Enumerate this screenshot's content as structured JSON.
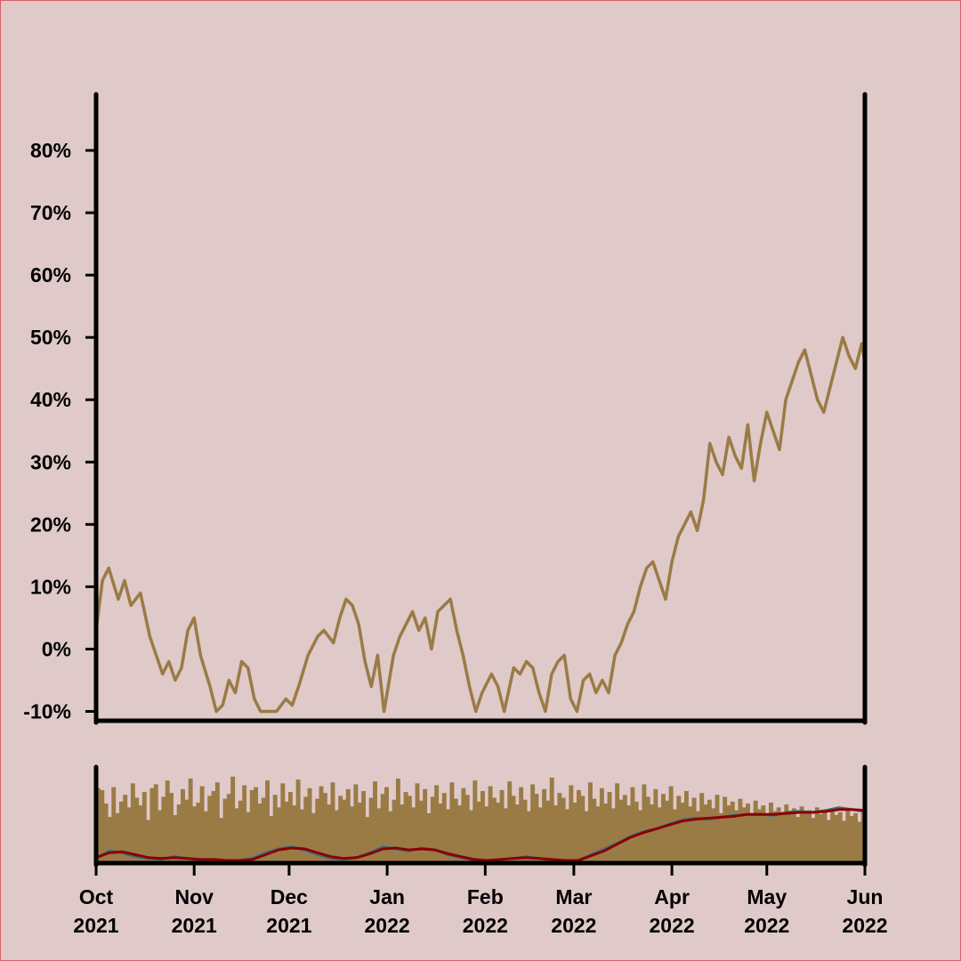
{
  "chart_data": [
    {
      "type": "line",
      "title": "",
      "xlabel": "",
      "ylabel": "",
      "ylim": [
        -11.5,
        89
      ],
      "yticks": [
        -10,
        0,
        10,
        20,
        30,
        40,
        50,
        60,
        70,
        80
      ],
      "ytick_labels": [
        "-10%",
        "0%",
        "10%",
        "20%",
        "30%",
        "40%",
        "50%",
        "60%",
        "70%",
        "80%"
      ],
      "grid": false,
      "legend": "none",
      "colors": {
        "line": "#9a7b45",
        "axis": "#000000",
        "background": "#dfc9c9"
      },
      "series": [
        {
          "x": [
            "2021-10-01",
            "2021-10-03",
            "2021-10-05",
            "2021-10-08",
            "2021-10-10",
            "2021-10-12",
            "2021-10-15",
            "2021-10-18",
            "2021-10-20",
            "2021-10-22",
            "2021-10-24",
            "2021-10-26",
            "2021-10-28",
            "2021-10-30",
            "2021-11-01",
            "2021-11-03",
            "2021-11-06",
            "2021-11-08",
            "2021-11-10",
            "2021-11-12",
            "2021-11-14",
            "2021-11-16",
            "2021-11-18",
            "2021-11-20",
            "2021-11-22",
            "2021-11-24",
            "2021-11-27",
            "2021-11-30",
            "2021-12-02",
            "2021-12-04",
            "2021-12-07",
            "2021-12-10",
            "2021-12-12",
            "2021-12-15",
            "2021-12-17",
            "2021-12-19",
            "2021-12-21",
            "2021-12-23",
            "2021-12-25",
            "2021-12-27",
            "2021-12-29",
            "2021-12-31",
            "2022-01-03",
            "2022-01-05",
            "2022-01-07",
            "2022-01-09",
            "2022-01-11",
            "2022-01-13",
            "2022-01-15",
            "2022-01-17",
            "2022-01-19",
            "2022-01-21",
            "2022-01-23",
            "2022-01-25",
            "2022-01-27",
            "2022-01-29",
            "2022-01-31",
            "2022-02-03",
            "2022-02-05",
            "2022-02-07",
            "2022-02-10",
            "2022-02-12",
            "2022-02-14",
            "2022-02-16",
            "2022-02-18",
            "2022-02-20",
            "2022-02-22",
            "2022-02-24",
            "2022-02-26",
            "2022-02-28",
            "2022-03-02",
            "2022-03-04",
            "2022-03-06",
            "2022-03-08",
            "2022-03-10",
            "2022-03-12",
            "2022-03-14",
            "2022-03-16",
            "2022-03-18",
            "2022-03-20",
            "2022-03-22",
            "2022-03-24",
            "2022-03-26",
            "2022-03-28",
            "2022-03-30",
            "2022-04-01",
            "2022-04-03",
            "2022-04-05",
            "2022-04-07",
            "2022-04-09",
            "2022-04-11",
            "2022-04-13",
            "2022-04-15",
            "2022-04-17",
            "2022-04-19",
            "2022-04-21",
            "2022-04-23",
            "2022-04-25",
            "2022-04-27",
            "2022-04-29",
            "2022-05-01",
            "2022-05-03",
            "2022-05-05",
            "2022-05-07",
            "2022-05-09",
            "2022-05-11",
            "2022-05-13",
            "2022-05-15",
            "2022-05-17",
            "2022-05-19",
            "2022-05-21",
            "2022-05-23",
            "2022-05-25",
            "2022-05-27",
            "2022-05-29",
            "2022-05-31",
            "2022-06-01"
          ],
          "y": [
            3,
            11,
            13,
            8,
            11,
            7,
            9,
            2,
            -1,
            -4,
            -2,
            -5,
            -3,
            3,
            5,
            -1,
            -6,
            -10,
            -9,
            -5,
            -7,
            -2,
            -3,
            -8,
            -10,
            -10,
            -10,
            -8,
            -9,
            -6,
            -1,
            2,
            3,
            1,
            5,
            8,
            7,
            4,
            -2,
            -6,
            -1,
            -10,
            -1,
            2,
            4,
            6,
            3,
            5,
            0,
            6,
            7,
            8,
            3,
            -1,
            -6,
            -10,
            -7,
            -4,
            -6,
            -10,
            -3,
            -4,
            -2,
            -3,
            -7,
            -10,
            -4,
            -2,
            -1,
            -8,
            -10,
            -5,
            -4,
            -7,
            -5,
            -7,
            -1,
            1,
            4,
            6,
            10,
            13,
            14,
            11,
            8,
            14,
            18,
            20,
            22,
            19,
            24,
            33,
            30,
            28,
            34,
            31,
            29,
            36,
            27,
            33,
            38,
            35,
            32,
            40,
            43,
            46,
            48,
            44,
            40,
            38,
            42,
            46,
            50,
            47,
            45,
            49,
            46
          ]
        }
      ]
    },
    {
      "type": "bar",
      "title": "",
      "grid": false,
      "legend": "none",
      "colors": {
        "bars": "#9a7b45",
        "line_fast": "#3b6e8a",
        "line_slow": "#8b0000"
      },
      "bar_range": [
        0,
        100
      ],
      "bar_values": [
        78,
        76,
        62,
        48,
        79,
        52,
        64,
        71,
        58,
        83,
        68,
        60,
        74,
        45,
        78,
        82,
        55,
        69,
        86,
        73,
        50,
        61,
        77,
        66,
        88,
        59,
        63,
        80,
        54,
        70,
        75,
        84,
        47,
        67,
        72,
        90,
        57,
        65,
        81,
        53,
        76,
        79,
        62,
        68,
        86,
        49,
        71,
        58,
        83,
        64,
        74,
        60,
        87,
        56,
        69,
        78,
        52,
        67,
        80,
        73,
        61,
        84,
        55,
        70,
        66,
        77,
        59,
        82,
        63,
        75,
        48,
        68,
        85,
        57,
        72,
        79,
        54,
        66,
        88,
        61,
        74,
        70,
        58,
        83,
        65,
        77,
        52,
        69,
        81,
        62,
        73,
        56,
        84,
        67,
        60,
        78,
        71,
        55,
        86,
        64,
        75,
        59,
        80,
        68,
        63,
        76,
        57,
        85,
        70,
        61,
        79,
        66,
        54,
        82,
        72,
        58,
        77,
        65,
        89,
        60,
        73,
        68,
        56,
        81,
        63,
        76,
        70,
        54,
        84,
        67,
        59,
        78,
        62,
        74,
        57,
        83,
        66,
        71,
        60,
        79,
        64,
        55,
        82,
        69,
        61,
        77,
        58,
        72,
        65,
        80,
        56,
        70,
        63,
        75,
        59,
        68,
        54,
        73,
        61,
        66,
        57,
        71,
        52,
        69,
        60,
        64,
        55,
        67,
        58,
        62,
        51,
        65,
        56,
        60,
        49,
        63,
        54,
        58,
        50,
        61,
        53,
        57,
        48,
        59,
        52,
        55,
        47,
        58,
        51,
        54,
        45,
        56,
        50,
        53,
        44,
        55,
        49,
        52,
        43,
        54
      ],
      "series": [
        {
          "name": "",
          "values": [
            2,
            10,
            8,
            4,
            2,
            1,
            4,
            2,
            0,
            1,
            0,
            0,
            2,
            8,
            12,
            14,
            11,
            6,
            2,
            1,
            3,
            8,
            14,
            12,
            10,
            13,
            11,
            6,
            3,
            0,
            0,
            1,
            2,
            4,
            2,
            0,
            0,
            0,
            6,
            12,
            18,
            25,
            30,
            33,
            38,
            42,
            44,
            43,
            45,
            47,
            48,
            48,
            47,
            50,
            51,
            50,
            52,
            55,
            53,
            51
          ]
        },
        {
          "name": "",
          "values": [
            3,
            8,
            9,
            6,
            3,
            2,
            3,
            2,
            1,
            1,
            0,
            0,
            1,
            6,
            11,
            13,
            12,
            8,
            4,
            2,
            3,
            7,
            12,
            13,
            11,
            12,
            11,
            7,
            4,
            1,
            0,
            1,
            2,
            3,
            2,
            1,
            0,
            0,
            5,
            10,
            17,
            24,
            29,
            33,
            37,
            41,
            43,
            44,
            45,
            46,
            48,
            48,
            48,
            49,
            50,
            50,
            51,
            53,
            53,
            52
          ]
        }
      ],
      "series_range": [
        0,
        100
      ]
    }
  ],
  "x_axis": {
    "start": "2021-10-01",
    "end": "2022-06-01",
    "ticks": [
      {
        "date": "2021-10-01",
        "month": "Oct",
        "year": "2021"
      },
      {
        "date": "2021-11-01",
        "month": "Nov",
        "year": "2021"
      },
      {
        "date": "2021-12-01",
        "month": "Dec",
        "year": "2021"
      },
      {
        "date": "2022-01-01",
        "month": "Jan",
        "year": "2022"
      },
      {
        "date": "2022-02-01",
        "month": "Feb",
        "year": "2022"
      },
      {
        "date": "2022-03-01",
        "month": "Mar",
        "year": "2022"
      },
      {
        "date": "2022-04-01",
        "month": "Apr",
        "year": "2022"
      },
      {
        "date": "2022-05-01",
        "month": "May",
        "year": "2022"
      },
      {
        "date": "2022-06-01",
        "month": "Jun",
        "year": "2022"
      }
    ]
  }
}
